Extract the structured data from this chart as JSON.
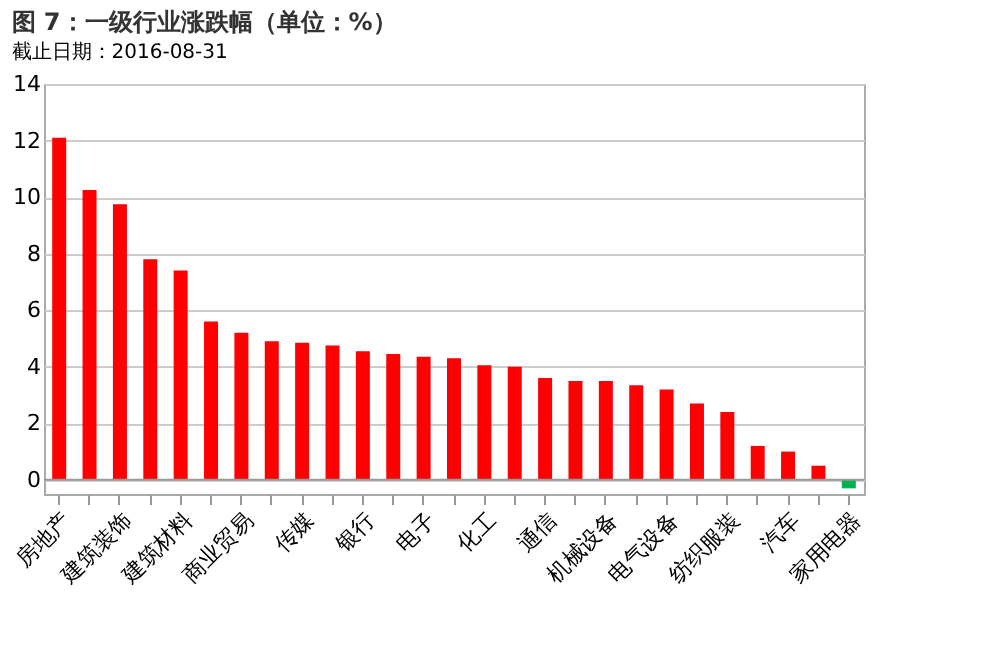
{
  "chart_data": {
    "type": "bar",
    "title": "图 7：一级行业涨跌幅（单位：%）",
    "categories": [
      "房地产",
      null,
      "建筑装饰",
      null,
      "建筑材料",
      null,
      "商业贸易",
      null,
      "传媒",
      null,
      "银行",
      null,
      "电子",
      null,
      "化工",
      null,
      "通信",
      null,
      "机械设备",
      null,
      "电气设备",
      null,
      "纺织服装",
      null,
      "汽车",
      null,
      "家用电器"
    ],
    "values": [
      12.1,
      10.25,
      9.75,
      7.8,
      7.4,
      5.6,
      5.2,
      4.9,
      4.85,
      4.75,
      4.55,
      4.45,
      4.35,
      4.3,
      4.05,
      4.0,
      3.6,
      3.5,
      3.5,
      3.35,
      3.2,
      2.7,
      2.4,
      1.2,
      1.0,
      0.5,
      -0.3
    ],
    "colors": [
      "#ff0000",
      "#ff0000",
      "#ff0000",
      "#ff0000",
      "#ff0000",
      "#ff0000",
      "#ff0000",
      "#ff0000",
      "#ff0000",
      "#ff0000",
      "#ff0000",
      "#ff0000",
      "#ff0000",
      "#ff0000",
      "#ff0000",
      "#ff0000",
      "#ff0000",
      "#ff0000",
      "#ff0000",
      "#ff0000",
      "#ff0000",
      "#ff0000",
      "#ff0000",
      "#ff0000",
      "#ff0000",
      "#ff0000",
      "#00b050"
    ],
    "ylim": [
      -0.5,
      14
    ],
    "yticks": [
      0,
      2,
      4,
      6,
      8,
      10,
      12,
      14
    ],
    "grid": "y",
    "annotations": [
      "截止日期：2016-08-31"
    ]
  }
}
